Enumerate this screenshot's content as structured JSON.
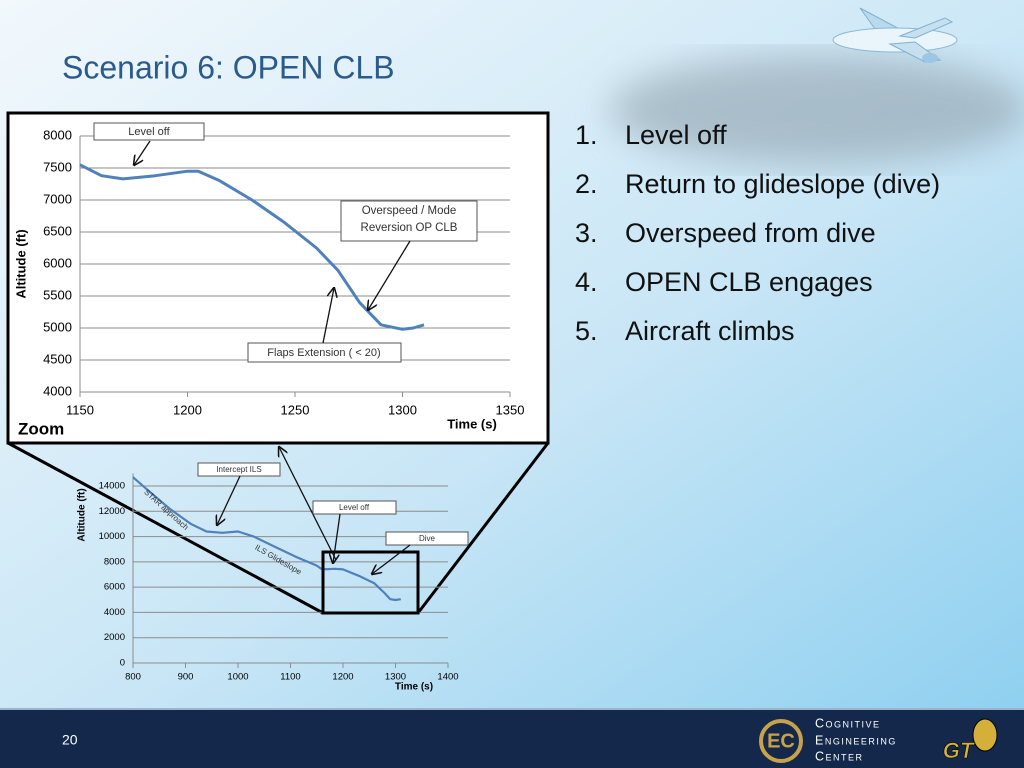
{
  "title": "Scenario 6: OPEN CLB",
  "list": [
    {
      "marker": "1.",
      "text": "Level off"
    },
    {
      "marker": "2.",
      "text": "Return to glideslope (dive)"
    },
    {
      "marker": "3.",
      "text": "Overspeed from dive"
    },
    {
      "marker": "4.",
      "text": "OPEN CLB engages"
    },
    {
      "marker": "5.",
      "text": "Aircraft climbs"
    }
  ],
  "zoom_label": "Zoom",
  "page_number": "20",
  "logo": {
    "mark": "EC",
    "lines": [
      "Cognitive",
      "Engineering",
      "Center"
    ]
  },
  "gt_logo": "GT",
  "chart_data": [
    {
      "type": "line",
      "xlabel": "Time (s)",
      "ylabel": "Altitude (ft)",
      "x": [
        1150,
        1160,
        1170,
        1185,
        1200,
        1205,
        1215,
        1230,
        1245,
        1260,
        1270,
        1280,
        1290,
        1300,
        1305,
        1310
      ],
      "values": [
        7550,
        7380,
        7330,
        7380,
        7450,
        7450,
        7300,
        7000,
        6650,
        6250,
        5900,
        5400,
        5050,
        4980,
        5000,
        5050
      ],
      "color": "#4f81bd",
      "xlim": [
        1150,
        1350
      ],
      "xticks": [
        1150,
        1200,
        1250,
        1300,
        1350
      ],
      "ylim": [
        4000,
        8000
      ],
      "yticks": [
        4000,
        4500,
        5000,
        5500,
        6000,
        6500,
        7000,
        7500,
        8000
      ],
      "grid": true,
      "annotations": [
        "Level off",
        "Overspeed / Mode Reversion OP CLB",
        "Flaps Extension ( < 20)"
      ]
    },
    {
      "type": "line",
      "xlabel": "Time (s)",
      "ylabel": "Altitude (ft)",
      "x": [
        800,
        830,
        870,
        910,
        940,
        970,
        1000,
        1030,
        1070,
        1110,
        1150,
        1160,
        1185,
        1200,
        1230,
        1260,
        1280,
        1290,
        1300,
        1310
      ],
      "values": [
        14700,
        13600,
        12200,
        11000,
        10400,
        10300,
        10400,
        10000,
        9200,
        8400,
        7700,
        7400,
        7450,
        7400,
        6900,
        6300,
        5500,
        5050,
        4980,
        5050
      ],
      "color": "#4f81bd",
      "xlim": [
        800,
        1400
      ],
      "xticks": [
        800,
        900,
        1000,
        1100,
        1200,
        1300,
        1400
      ],
      "ylim": [
        0,
        15000
      ],
      "yticks": [
        0,
        2000,
        4000,
        6000,
        8000,
        10000,
        12000,
        14000
      ],
      "grid": true,
      "annotations": [
        "Intercept ILS",
        "STAR approach",
        "Level off",
        "ILS Glideslope",
        "Dive"
      ]
    }
  ]
}
